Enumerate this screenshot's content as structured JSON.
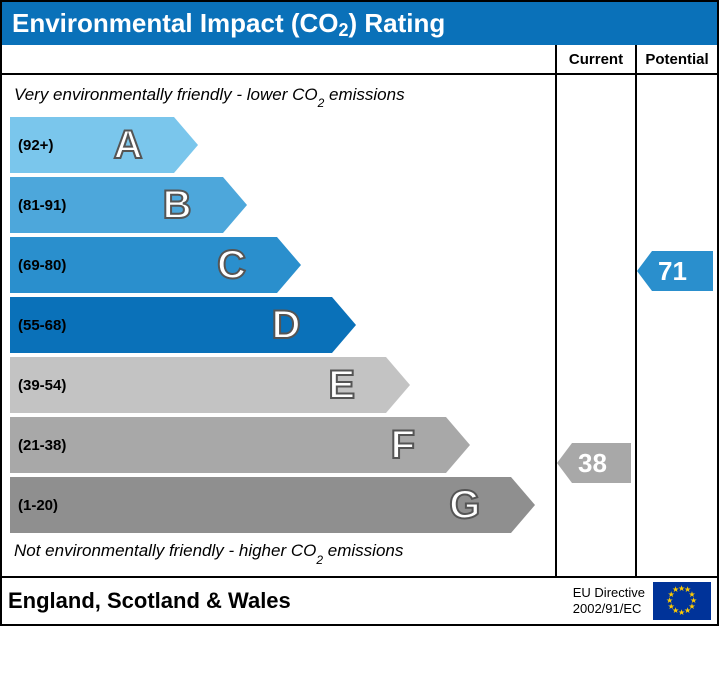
{
  "title_prefix": "Environmental Impact (CO",
  "title_sub": "2",
  "title_suffix": ") Rating",
  "title_bg": "#0a71b9",
  "col_headers": {
    "current": "Current",
    "potential": "Potential"
  },
  "caption_top_prefix": "Very environmentally friendly - lower CO",
  "caption_top_sub": "2",
  "caption_top_suffix": " emissions",
  "caption_bottom_prefix": "Not environmentally friendly - higher CO",
  "caption_bottom_sub": "2",
  "caption_bottom_suffix": " emissions",
  "band_height": 56,
  "chevron_w": 24,
  "bands": [
    {
      "letter": "A",
      "range": "(92+)",
      "width_pct": 30,
      "color": "#7ac6ec"
    },
    {
      "letter": "B",
      "range": "(81-91)",
      "width_pct": 39,
      "color": "#4da7db"
    },
    {
      "letter": "C",
      "range": "(69-80)",
      "width_pct": 49,
      "color": "#2a8fcd"
    },
    {
      "letter": "D",
      "range": "(55-68)",
      "width_pct": 59,
      "color": "#0a71b9"
    },
    {
      "letter": "E",
      "range": "(39-54)",
      "width_pct": 69,
      "color": "#c3c3c3"
    },
    {
      "letter": "F",
      "range": "(21-38)",
      "width_pct": 80,
      "color": "#a8a8a8"
    },
    {
      "letter": "G",
      "range": "(1-20)",
      "width_pct": 92,
      "color": "#8f8f8f"
    }
  ],
  "current": {
    "value": "38",
    "band_index": 5,
    "color": "#a8a8a8"
  },
  "potential": {
    "value": "71",
    "band_index": 2,
    "color": "#2a8fcd"
  },
  "footer": {
    "region": "England, Scotland & Wales",
    "directive_line1": "EU Directive",
    "directive_line2": "2002/91/EC"
  }
}
